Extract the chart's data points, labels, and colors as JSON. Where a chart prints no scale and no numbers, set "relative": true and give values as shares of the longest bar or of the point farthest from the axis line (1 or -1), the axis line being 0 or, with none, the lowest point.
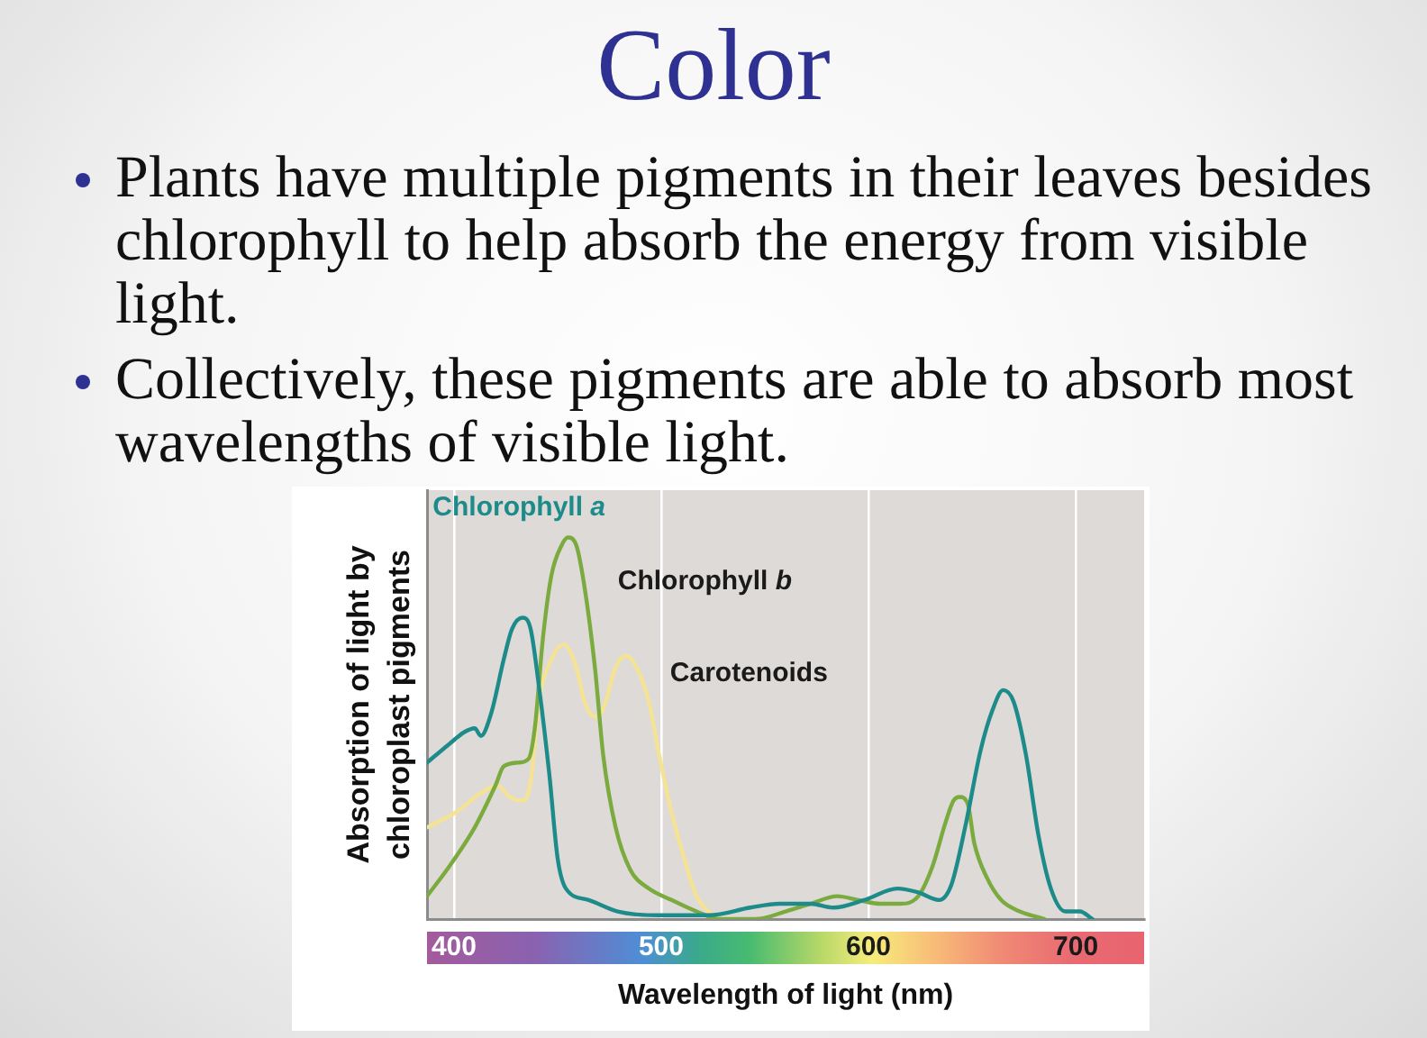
{
  "chart_data": {
    "type": "line",
    "title": "Color",
    "annotations": [
      "Plants have multiple pigments in their leaves besides chlorophyll to help absorb the energy from visible light.",
      "Collectively, these pigments are able to absorb most wavelengths of visible light."
    ],
    "xlabel": "Wavelength of light (nm)",
    "ylabel": "Absorption of light by chloroplast pigments",
    "relative": true,
    "xlim": [
      387,
      733
    ],
    "xticks": [
      400,
      500,
      600,
      700
    ],
    "grid": "x",
    "legend": false,
    "tick_labels": "x",
    "marker": "none",
    "line_style": "solid",
    "series": [
      {
        "name": "Chlorophyll a",
        "color": "#1c8b8a",
        "x": [
          387,
          398,
          405,
          410,
          413,
          418,
          424,
          428,
          433,
          437,
          441,
          446,
          450,
          454,
          465,
          479,
          499,
          523,
          543,
          557,
          572,
          583,
          598,
          614,
          624,
          634,
          640,
          647,
          654,
          660,
          665,
          670,
          676,
          682,
          688,
          695,
          702,
          708
        ],
        "values": [
          0.41,
          0.46,
          0.49,
          0.5,
          0.48,
          0.54,
          0.68,
          0.76,
          0.79,
          0.76,
          0.61,
          0.38,
          0.16,
          0.08,
          0.05,
          0.02,
          0.01,
          0.01,
          0.03,
          0.04,
          0.04,
          0.03,
          0.05,
          0.08,
          0.07,
          0.05,
          0.09,
          0.25,
          0.44,
          0.55,
          0.6,
          0.57,
          0.43,
          0.22,
          0.08,
          0.02,
          0.02,
          0
        ]
      },
      {
        "name": "Chlorophyll b",
        "color": "#7bab3f",
        "x": [
          387,
          398,
          410,
          420,
          424,
          431,
          436,
          439,
          443,
          447,
          452,
          455,
          459,
          463,
          468,
          472,
          478,
          485,
          494,
          505,
          517,
          528,
          546,
          560,
          572,
          585,
          595,
          606,
          615,
          624,
          631,
          637,
          641,
          644,
          648,
          651,
          657,
          664,
          673,
          685
        ],
        "values": [
          0.06,
          0.14,
          0.24,
          0.35,
          0.4,
          0.41,
          0.42,
          0.5,
          0.74,
          0.9,
          0.98,
          1,
          0.98,
          0.87,
          0.66,
          0.43,
          0.24,
          0.13,
          0.08,
          0.05,
          0.02,
          0,
          0,
          0.02,
          0.04,
          0.06,
          0.05,
          0.04,
          0.04,
          0.06,
          0.14,
          0.25,
          0.31,
          0.32,
          0.3,
          0.2,
          0.11,
          0.05,
          0.02,
          0
        ]
      },
      {
        "name": "Carotenoids",
        "color": "#f5e394",
        "x": [
          387,
          401,
          413,
          421,
          427,
          433,
          437,
          441,
          447,
          453,
          459,
          463,
          468,
          472,
          478,
          483,
          488,
          494,
          499,
          505,
          511,
          517,
          523,
          528,
          535
        ],
        "values": [
          0.24,
          0.28,
          0.33,
          0.35,
          0.32,
          0.31,
          0.36,
          0.57,
          0.68,
          0.72,
          0.66,
          0.57,
          0.53,
          0.55,
          0.66,
          0.69,
          0.66,
          0.57,
          0.43,
          0.28,
          0.16,
          0.06,
          0.02,
          0,
          0
        ]
      }
    ]
  }
}
